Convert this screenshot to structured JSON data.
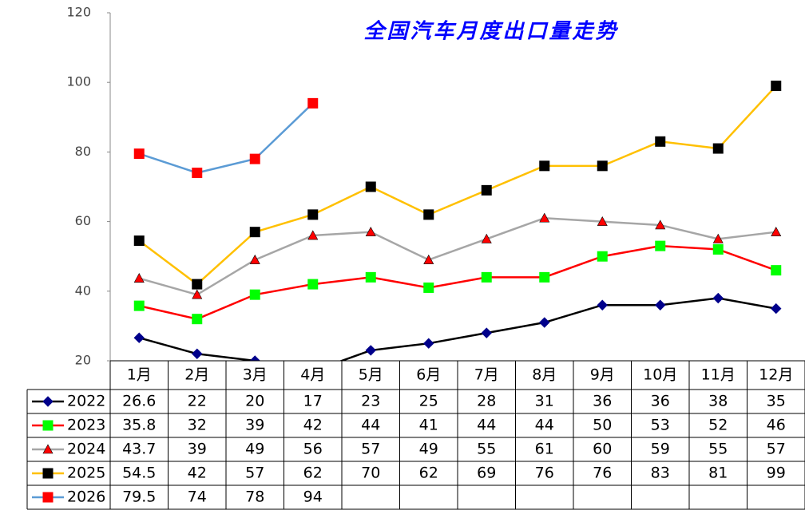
{
  "chart_data": {
    "type": "line",
    "title": "全国汽车月度出口量走势",
    "categories": [
      "1月",
      "2月",
      "3月",
      "4月",
      "5月",
      "6月",
      "7月",
      "8月",
      "9月",
      "10月",
      "11月",
      "12月"
    ],
    "series": [
      {
        "name": "2022",
        "color": "#000000",
        "marker": "diamond",
        "marker_color": "#00008b",
        "values": [
          26.6,
          22,
          20,
          17,
          23,
          25,
          28,
          31,
          36,
          36,
          38,
          35
        ]
      },
      {
        "name": "2023",
        "color": "#ff0000",
        "marker": "square",
        "marker_color": "#00ff00",
        "values": [
          35.8,
          32,
          39,
          42,
          44,
          41,
          44,
          44,
          50,
          53,
          52,
          46
        ]
      },
      {
        "name": "2024",
        "color": "#a6a6a6",
        "marker": "triangle",
        "marker_color": "#ff0000",
        "values": [
          43.7,
          39,
          49,
          56,
          57,
          49,
          55,
          61,
          60,
          59,
          55,
          57
        ]
      },
      {
        "name": "2025",
        "color": "#ffc000",
        "marker": "square",
        "marker_color": "#000000",
        "values": [
          54.5,
          42,
          57,
          62,
          70,
          62,
          69,
          76,
          76,
          83,
          81,
          99
        ]
      },
      {
        "name": "2026",
        "color": "#5b9bd5",
        "marker": "square",
        "marker_color": "#ff0000",
        "values": [
          79.5,
          74,
          78,
          94,
          null,
          null,
          null,
          null,
          null,
          null,
          null,
          null
        ]
      }
    ],
    "ylim": [
      20,
      120
    ],
    "yticks": [
      20,
      40,
      60,
      80,
      100,
      120
    ],
    "grid": false
  }
}
